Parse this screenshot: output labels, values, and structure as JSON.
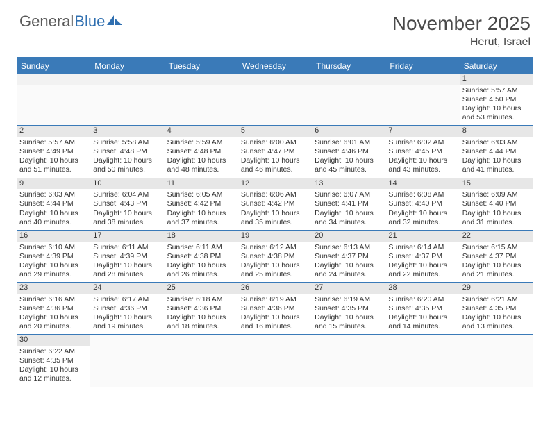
{
  "brand": {
    "part1": "General",
    "part2": "Blue",
    "part1_color": "#5a5a5a",
    "part2_color": "#2f6fb0",
    "icon_color": "#2f6fb0",
    "fontsize": 22
  },
  "header": {
    "month_title": "November 2025",
    "location": "Herut, Israel",
    "title_color": "#4a4a4a",
    "title_fontsize": 28,
    "location_fontsize": 16
  },
  "calendar": {
    "header_bg": "#3a7ab8",
    "header_fg": "#ffffff",
    "grid_line_color": "#3a7ab8",
    "daynum_bg": "#e7e7e7",
    "cell_fontsize": 10.5,
    "weekdays": [
      "Sunday",
      "Monday",
      "Tuesday",
      "Wednesday",
      "Thursday",
      "Friday",
      "Saturday"
    ],
    "weeks": [
      [
        null,
        null,
        null,
        null,
        null,
        null,
        {
          "n": "1",
          "sunrise": "Sunrise: 5:57 AM",
          "sunset": "Sunset: 4:50 PM",
          "daylight": "Daylight: 10 hours and 53 minutes."
        }
      ],
      [
        {
          "n": "2",
          "sunrise": "Sunrise: 5:57 AM",
          "sunset": "Sunset: 4:49 PM",
          "daylight": "Daylight: 10 hours and 51 minutes."
        },
        {
          "n": "3",
          "sunrise": "Sunrise: 5:58 AM",
          "sunset": "Sunset: 4:48 PM",
          "daylight": "Daylight: 10 hours and 50 minutes."
        },
        {
          "n": "4",
          "sunrise": "Sunrise: 5:59 AM",
          "sunset": "Sunset: 4:48 PM",
          "daylight": "Daylight: 10 hours and 48 minutes."
        },
        {
          "n": "5",
          "sunrise": "Sunrise: 6:00 AM",
          "sunset": "Sunset: 4:47 PM",
          "daylight": "Daylight: 10 hours and 46 minutes."
        },
        {
          "n": "6",
          "sunrise": "Sunrise: 6:01 AM",
          "sunset": "Sunset: 4:46 PM",
          "daylight": "Daylight: 10 hours and 45 minutes."
        },
        {
          "n": "7",
          "sunrise": "Sunrise: 6:02 AM",
          "sunset": "Sunset: 4:45 PM",
          "daylight": "Daylight: 10 hours and 43 minutes."
        },
        {
          "n": "8",
          "sunrise": "Sunrise: 6:03 AM",
          "sunset": "Sunset: 4:44 PM",
          "daylight": "Daylight: 10 hours and 41 minutes."
        }
      ],
      [
        {
          "n": "9",
          "sunrise": "Sunrise: 6:03 AM",
          "sunset": "Sunset: 4:44 PM",
          "daylight": "Daylight: 10 hours and 40 minutes."
        },
        {
          "n": "10",
          "sunrise": "Sunrise: 6:04 AM",
          "sunset": "Sunset: 4:43 PM",
          "daylight": "Daylight: 10 hours and 38 minutes."
        },
        {
          "n": "11",
          "sunrise": "Sunrise: 6:05 AM",
          "sunset": "Sunset: 4:42 PM",
          "daylight": "Daylight: 10 hours and 37 minutes."
        },
        {
          "n": "12",
          "sunrise": "Sunrise: 6:06 AM",
          "sunset": "Sunset: 4:42 PM",
          "daylight": "Daylight: 10 hours and 35 minutes."
        },
        {
          "n": "13",
          "sunrise": "Sunrise: 6:07 AM",
          "sunset": "Sunset: 4:41 PM",
          "daylight": "Daylight: 10 hours and 34 minutes."
        },
        {
          "n": "14",
          "sunrise": "Sunrise: 6:08 AM",
          "sunset": "Sunset: 4:40 PM",
          "daylight": "Daylight: 10 hours and 32 minutes."
        },
        {
          "n": "15",
          "sunrise": "Sunrise: 6:09 AM",
          "sunset": "Sunset: 4:40 PM",
          "daylight": "Daylight: 10 hours and 31 minutes."
        }
      ],
      [
        {
          "n": "16",
          "sunrise": "Sunrise: 6:10 AM",
          "sunset": "Sunset: 4:39 PM",
          "daylight": "Daylight: 10 hours and 29 minutes."
        },
        {
          "n": "17",
          "sunrise": "Sunrise: 6:11 AM",
          "sunset": "Sunset: 4:39 PM",
          "daylight": "Daylight: 10 hours and 28 minutes."
        },
        {
          "n": "18",
          "sunrise": "Sunrise: 6:11 AM",
          "sunset": "Sunset: 4:38 PM",
          "daylight": "Daylight: 10 hours and 26 minutes."
        },
        {
          "n": "19",
          "sunrise": "Sunrise: 6:12 AM",
          "sunset": "Sunset: 4:38 PM",
          "daylight": "Daylight: 10 hours and 25 minutes."
        },
        {
          "n": "20",
          "sunrise": "Sunrise: 6:13 AM",
          "sunset": "Sunset: 4:37 PM",
          "daylight": "Daylight: 10 hours and 24 minutes."
        },
        {
          "n": "21",
          "sunrise": "Sunrise: 6:14 AM",
          "sunset": "Sunset: 4:37 PM",
          "daylight": "Daylight: 10 hours and 22 minutes."
        },
        {
          "n": "22",
          "sunrise": "Sunrise: 6:15 AM",
          "sunset": "Sunset: 4:37 PM",
          "daylight": "Daylight: 10 hours and 21 minutes."
        }
      ],
      [
        {
          "n": "23",
          "sunrise": "Sunrise: 6:16 AM",
          "sunset": "Sunset: 4:36 PM",
          "daylight": "Daylight: 10 hours and 20 minutes."
        },
        {
          "n": "24",
          "sunrise": "Sunrise: 6:17 AM",
          "sunset": "Sunset: 4:36 PM",
          "daylight": "Daylight: 10 hours and 19 minutes."
        },
        {
          "n": "25",
          "sunrise": "Sunrise: 6:18 AM",
          "sunset": "Sunset: 4:36 PM",
          "daylight": "Daylight: 10 hours and 18 minutes."
        },
        {
          "n": "26",
          "sunrise": "Sunrise: 6:19 AM",
          "sunset": "Sunset: 4:36 PM",
          "daylight": "Daylight: 10 hours and 16 minutes."
        },
        {
          "n": "27",
          "sunrise": "Sunrise: 6:19 AM",
          "sunset": "Sunset: 4:35 PM",
          "daylight": "Daylight: 10 hours and 15 minutes."
        },
        {
          "n": "28",
          "sunrise": "Sunrise: 6:20 AM",
          "sunset": "Sunset: 4:35 PM",
          "daylight": "Daylight: 10 hours and 14 minutes."
        },
        {
          "n": "29",
          "sunrise": "Sunrise: 6:21 AM",
          "sunset": "Sunset: 4:35 PM",
          "daylight": "Daylight: 10 hours and 13 minutes."
        }
      ],
      [
        {
          "n": "30",
          "sunrise": "Sunrise: 6:22 AM",
          "sunset": "Sunset: 4:35 PM",
          "daylight": "Daylight: 10 hours and 12 minutes."
        },
        null,
        null,
        null,
        null,
        null,
        null
      ]
    ]
  }
}
